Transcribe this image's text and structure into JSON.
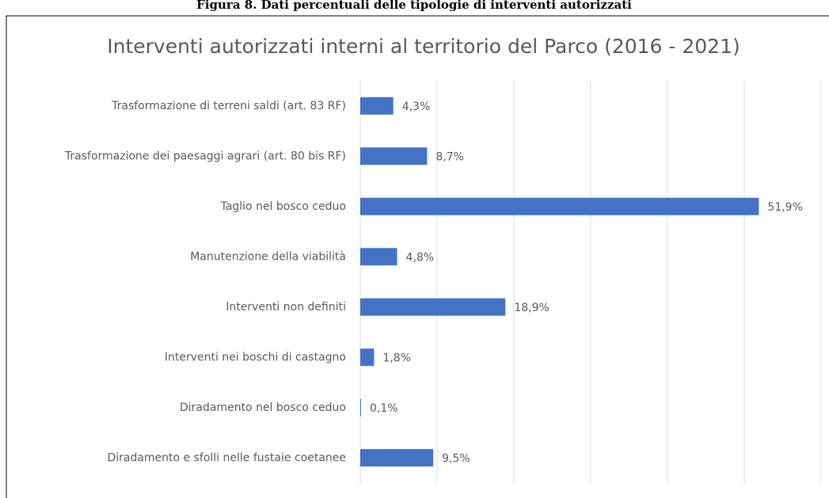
{
  "caption": "Figura 8. Dati percentuali delle tipologie di interventi autorizzati",
  "chart_data": {
    "type": "bar",
    "orientation": "horizontal",
    "title": "Interventi autorizzati interni al territorio del Parco (2016 - 2021)",
    "categories": [
      "Trasformazione di terreni saldi (art. 83 RF)",
      "Trasformazione dei paesaggi agrari (art. 80 bis RF)",
      "Taglio nel bosco ceduo",
      "Manutenzione della viabilità",
      "Interventi non definiti",
      "Interventi nei boschi di castagno",
      "Diradamento nel bosco ceduo",
      "Diradamento e sfolli nelle fustaie coetanee"
    ],
    "values": [
      4.3,
      8.7,
      51.9,
      4.8,
      18.9,
      1.8,
      0.1,
      9.5
    ],
    "value_labels": [
      "4,3%",
      "8,7%",
      "51,9%",
      "4,8%",
      "18,9%",
      "1,8%",
      "0,1%",
      "9,5%"
    ],
    "color": "#4472c4",
    "xlim": [
      0,
      60
    ],
    "xticks": [
      0,
      10,
      20,
      30,
      40,
      50,
      60
    ],
    "grid": true
  }
}
